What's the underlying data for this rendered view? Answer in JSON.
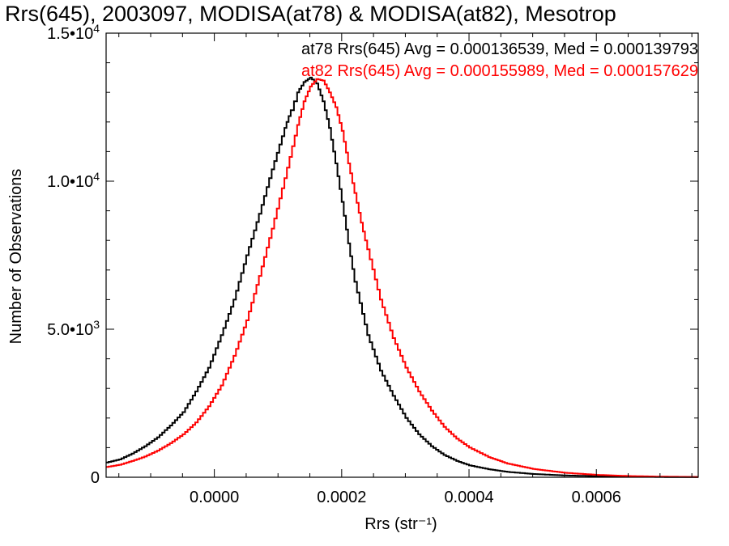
{
  "chart_data": {
    "type": "line",
    "title": "Rrs(645), 2003097, MODISA(at78) & MODISA(at82), Mesotrop",
    "xlabel": "Rrs (str⁻¹)",
    "ylabel": "Number of Observations",
    "xlim": [
      -0.00017,
      0.00076
    ],
    "ylim": [
      0,
      15000
    ],
    "x_ticks": [
      {
        "value": 0.0,
        "label": "0.0000"
      },
      {
        "value": 0.0002,
        "label": "0.0002"
      },
      {
        "value": 0.0004,
        "label": "0.0004"
      },
      {
        "value": 0.0006,
        "label": "0.0006"
      }
    ],
    "y_ticks": [
      {
        "value": 0,
        "mant": "0",
        "exp": ""
      },
      {
        "value": 5000,
        "mant": "5.0•10",
        "exp": "3"
      },
      {
        "value": 10000,
        "mant": "1.0•10",
        "exp": "4"
      },
      {
        "value": 15000,
        "mant": "1.5•10",
        "exp": "4"
      }
    ],
    "grid": false,
    "legend_position": "top-right",
    "series": [
      {
        "name": "at78",
        "label": "at78 Rrs(645) Avg = 0.000136539, Med = 0.000139793",
        "color": "#000000",
        "x": [
          -0.00017,
          -0.00015,
          -0.00013,
          -0.00011,
          -9e-05,
          -7e-05,
          -5e-05,
          -3e-05,
          -1e-05,
          1e-05,
          3e-05,
          5e-05,
          7e-05,
          9e-05,
          0.00011,
          0.00012,
          0.00013,
          0.00014,
          0.00015,
          0.00016,
          0.00017,
          0.00018,
          0.00019,
          0.0002,
          0.00021,
          0.00022,
          0.00024,
          0.00026,
          0.00028,
          0.0003,
          0.00032,
          0.00034,
          0.00036,
          0.00038,
          0.0004,
          0.00043,
          0.00046,
          0.0005,
          0.00055,
          0.0006,
          0.00065,
          0.0007,
          0.00076
        ],
        "y": [
          500,
          600,
          800,
          1050,
          1350,
          1750,
          2200,
          2900,
          3700,
          4800,
          6000,
          7500,
          8900,
          10400,
          11800,
          12400,
          13000,
          13350,
          13500,
          13300,
          12700,
          11800,
          10600,
          9300,
          7900,
          6600,
          4800,
          3600,
          2750,
          2000,
          1450,
          1050,
          750,
          550,
          400,
          270,
          180,
          110,
          60,
          35,
          20,
          10,
          5
        ]
      },
      {
        "name": "at82",
        "label": "at82 Rrs(645) Avg = 0.000155989, Med = 0.000157629",
        "color": "#ff0000",
        "x": [
          -0.00017,
          -0.00015,
          -0.00013,
          -0.00011,
          -9e-05,
          -7e-05,
          -5e-05,
          -3e-05,
          -1e-05,
          1e-05,
          3e-05,
          5e-05,
          7e-05,
          9e-05,
          0.00011,
          0.00013,
          0.00014,
          0.00015,
          0.00016,
          0.00017,
          0.00018,
          0.00019,
          0.0002,
          0.00021,
          0.00022,
          0.00023,
          0.00024,
          0.00026,
          0.00028,
          0.0003,
          0.00032,
          0.00034,
          0.00036,
          0.00038,
          0.0004,
          0.00043,
          0.00046,
          0.0005,
          0.00055,
          0.0006,
          0.00065,
          0.0007,
          0.00076
        ],
        "y": [
          350,
          420,
          550,
          700,
          900,
          1150,
          1450,
          1850,
          2400,
          3100,
          4100,
          5300,
          6800,
          8400,
          10100,
          11900,
          12700,
          13200,
          13450,
          13400,
          13000,
          12500,
          11700,
          10600,
          9600,
          8600,
          7700,
          6000,
          4700,
          3700,
          2900,
          2250,
          1700,
          1300,
          1000,
          680,
          460,
          280,
          150,
          80,
          40,
          20,
          8
        ]
      }
    ]
  }
}
